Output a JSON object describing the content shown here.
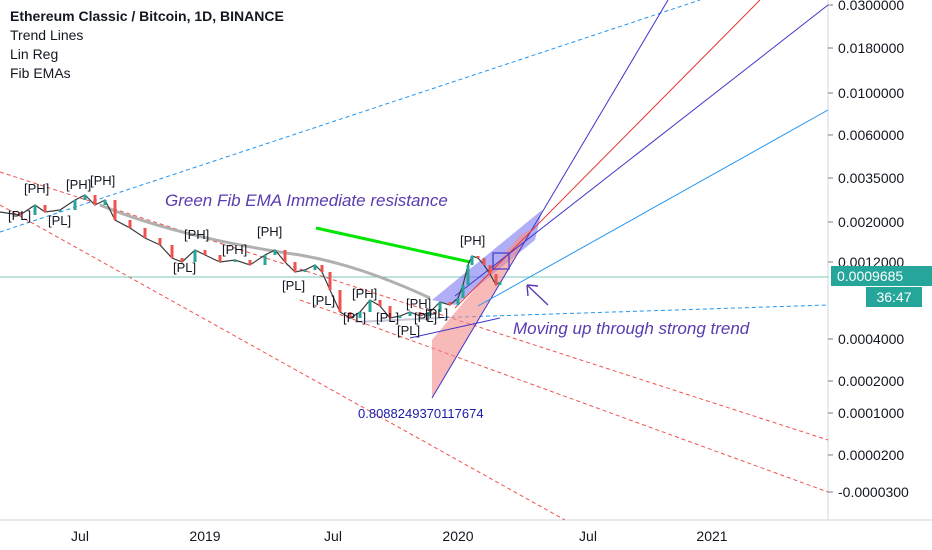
{
  "legend": {
    "title": "Ethereum Classic / Bitcoin, 1D, BINANCE",
    "items": [
      "Trend Lines",
      "Lin Reg",
      "Fib EMAs"
    ]
  },
  "annotations": {
    "resistance": "Green Fib EMA Immediate resistance",
    "trend": "Moving up through strong trend",
    "fib_value": "0.8088249370117674"
  },
  "price_badge": {
    "value": "0.0009685",
    "color": "#26a69a"
  },
  "timer_badge": {
    "value": "36:47",
    "color": "#26a69a"
  },
  "chart_data": {
    "type": "line",
    "symbol": "Ethereum Classic / Bitcoin, 1D, BINANCE",
    "x_ticks": [
      "Jul",
      "2019",
      "Jul",
      "2020",
      "Jul",
      "2021"
    ],
    "y_ticks": [
      "0.0300000",
      "0.0180000",
      "0.0100000",
      "0.0060000",
      "0.0035000",
      "0.0020000",
      "0.0012000",
      "0.0004000",
      "0.0002000",
      "0.0001000",
      "0.0000200",
      "-0.0000300"
    ],
    "pivot_labels": [
      "[PH]",
      "[PL]"
    ],
    "last_price": 0.0009685,
    "colors": {
      "up": "#26a69a",
      "down": "#ef5350",
      "trend_blue": "#2962ff",
      "fib_green": "#00e600",
      "ema_gray": "#b0b0b0"
    }
  }
}
